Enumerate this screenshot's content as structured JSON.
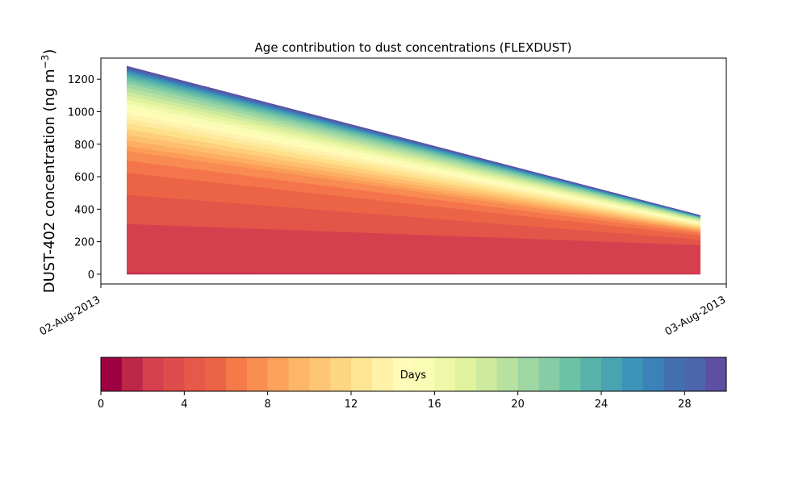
{
  "chart_data": [
    {
      "type": "area",
      "title": "Age contribution to dust concentrations (FLEXDUST)",
      "ylabel": "DUST-402 concentration (ng m",
      "ylabel_sup": "−3",
      "ylabel_close": ")",
      "xlim": [
        "02-Aug-2013 00:00",
        "03-Aug-2013 00:00"
      ],
      "ylim": [
        -60,
        1330
      ],
      "x_tick_labels": [
        "02-Aug-2013",
        "03-Aug-2013"
      ],
      "y_ticks": [
        0,
        200,
        400,
        600,
        800,
        1000,
        1200
      ],
      "x": [
        "02-Aug-2013 01:00",
        "02-Aug-2013 23:00"
      ],
      "stacked_total": [
        1280,
        362
      ],
      "boundaries_start": [
        0,
        10,
        310,
        490,
        625,
        700,
        760,
        790,
        825,
        860,
        895,
        930,
        960,
        990,
        1020,
        1050,
        1075,
        1100,
        1125,
        1150,
        1175,
        1195,
        1212,
        1228,
        1240,
        1250,
        1258,
        1265,
        1271,
        1276,
        1280
      ],
      "boundaries_end": [
        0,
        5,
        180,
        215,
        240,
        255,
        265,
        272,
        278,
        285,
        292,
        298,
        304,
        310,
        316,
        321,
        326,
        331,
        336,
        340,
        344,
        347,
        350,
        352,
        354,
        356,
        358,
        359,
        360,
        361,
        362
      ],
      "series_colors": [
        "#be2848",
        "#d6404e",
        "#e35549",
        "#ec6446",
        "#f4754b",
        "#f88b51",
        "#fb9d59",
        "#fdae61",
        "#fdbf6f",
        "#fece7c",
        "#fee08b",
        "#feea9d",
        "#fff2ae",
        "#fffbb8",
        "#f8fcb4",
        "#eef8a8",
        "#e1f29d",
        "#cdea9e",
        "#b6e1a0",
        "#9fd7a3",
        "#86cca5",
        "#6cc2a5",
        "#58b2aa",
        "#4aa3b1",
        "#3d93b8",
        "#3a82b9",
        "#4470b1",
        "#4c65ab",
        "#5558a6",
        "#5e4fa2"
      ]
    },
    {
      "type": "heatmap",
      "label": "Days",
      "range": [
        0,
        30
      ],
      "ticks": [
        0,
        4,
        8,
        12,
        16,
        20,
        24,
        28
      ],
      "colors": [
        "#9e0142",
        "#be2848",
        "#d6404e",
        "#de4d4b",
        "#e65848",
        "#ec6446",
        "#f47a49",
        "#f98e52",
        "#fba25c",
        "#fdb567",
        "#fec574",
        "#fed583",
        "#fee593",
        "#fff1a8",
        "#fffbb8",
        "#f8fcb4",
        "#eef8a8",
        "#e1f29d",
        "#cdea9e",
        "#b6e1a0",
        "#9fd7a3",
        "#86cca5",
        "#6cc2a5",
        "#58b2aa",
        "#4aa3b1",
        "#3d93b8",
        "#3a82b9",
        "#4470b1",
        "#4c65ab",
        "#5e4fa2"
      ]
    }
  ]
}
